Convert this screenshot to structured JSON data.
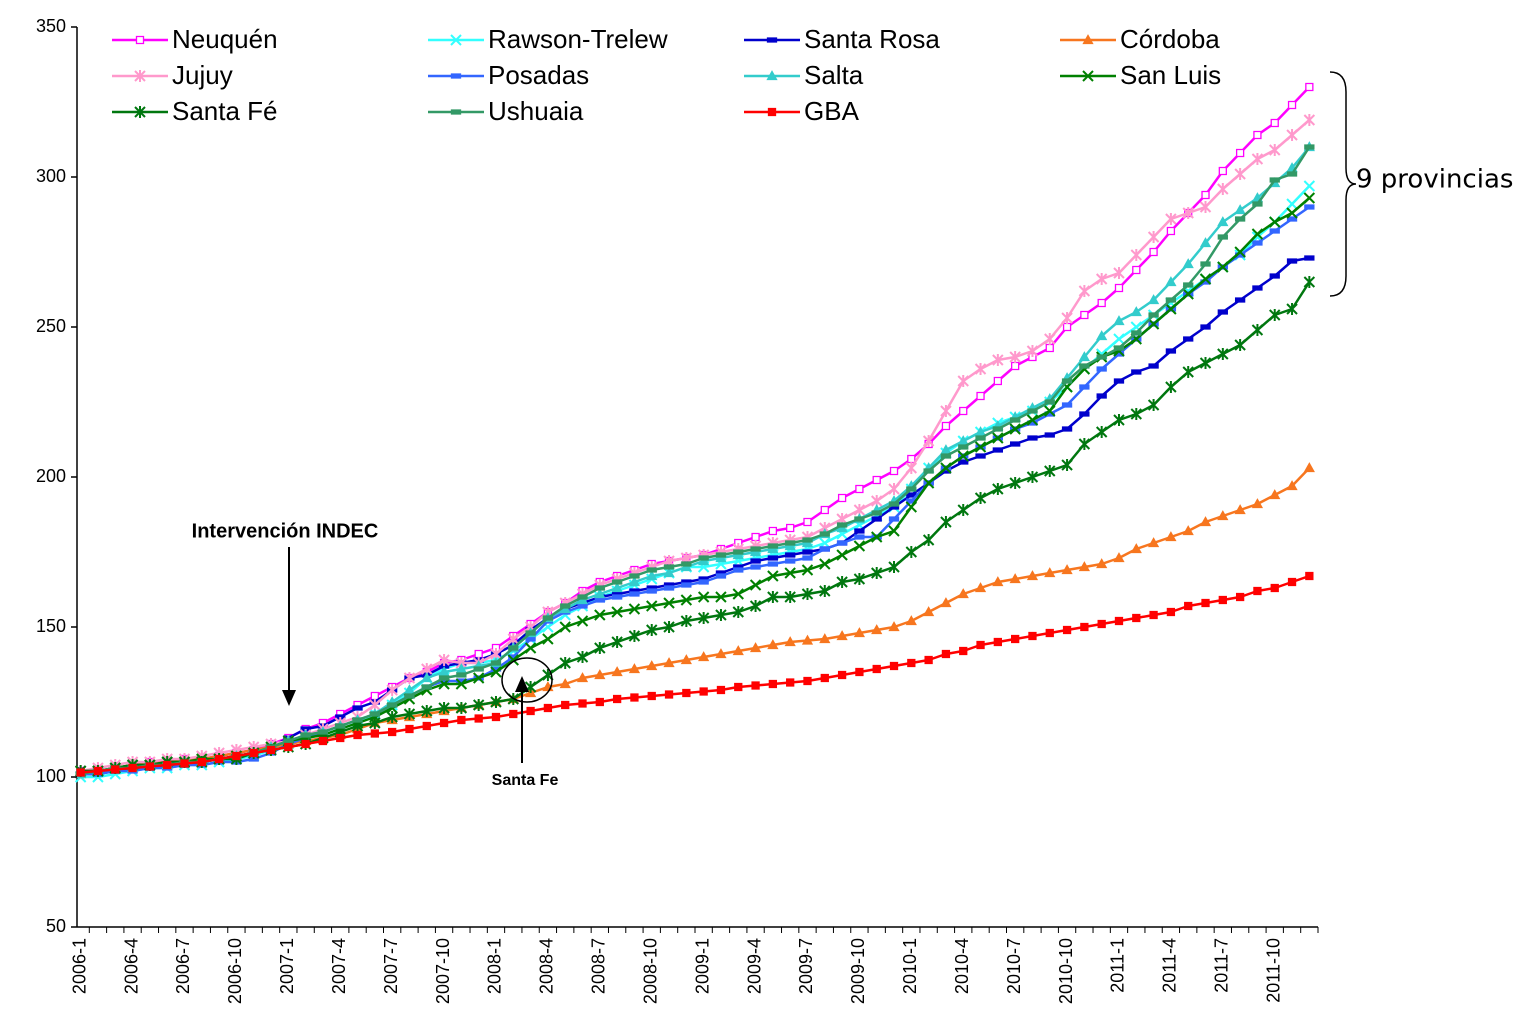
{
  "chart_data": {
    "type": "line",
    "categories": [
      "2006-1",
      null,
      null,
      "2006-4",
      null,
      null,
      "2006-7",
      null,
      null,
      "2006-10",
      null,
      null,
      "2007-1",
      null,
      null,
      "2007-4",
      null,
      null,
      "2007-7",
      null,
      null,
      "2007-10",
      null,
      null,
      "2008-1",
      null,
      null,
      "2008-4",
      null,
      null,
      "2008-7",
      null,
      null,
      "2008-10",
      null,
      null,
      "2009-1",
      null,
      null,
      "2009-4",
      null,
      null,
      "2009-7",
      null,
      null,
      "2009-10",
      null,
      null,
      "2010-1",
      null,
      null,
      "2010-4",
      null,
      null,
      "2010-7",
      null,
      null,
      "2010-10",
      null,
      null,
      "2011-1",
      null,
      null,
      "2011-4",
      null,
      null,
      "2011-7",
      null,
      null,
      "2011-10",
      null,
      null
    ],
    "ylim": [
      50,
      350
    ],
    "yticks": [
      50,
      100,
      150,
      200,
      250,
      300,
      350
    ],
    "annotations": [
      "Intervención INDEC",
      "Santa Fe",
      "9 provincias"
    ],
    "series": [
      {
        "name": "Neuquén",
        "color": "#ff00ff",
        "marker": "square-open",
        "values": [
          102,
          102,
          103,
          104,
          105,
          105,
          106,
          106,
          107,
          108,
          109,
          111,
          113,
          116,
          118,
          121,
          124,
          127,
          130,
          133,
          135,
          138,
          139,
          141,
          143,
          147,
          151,
          155,
          158,
          162,
          165,
          167,
          169,
          171,
          172,
          173,
          174,
          176,
          178,
          180,
          182,
          183,
          185,
          189,
          193,
          196,
          199,
          202,
          206,
          211,
          217,
          222,
          227,
          232,
          237,
          240,
          243,
          250,
          254,
          258,
          263,
          269,
          275,
          282,
          288,
          294,
          302,
          308,
          314,
          318,
          324,
          330
        ]
      },
      {
        "name": "Rawson-Trelew",
        "color": "#33ffff",
        "marker": "x",
        "values": [
          100,
          100,
          101,
          102,
          103,
          103,
          104,
          104,
          105,
          106,
          107,
          109,
          111,
          113,
          114,
          116,
          118,
          121,
          124,
          128,
          133,
          136,
          138,
          138,
          139,
          142,
          146,
          150,
          154,
          157,
          160,
          162,
          164,
          166,
          168,
          170,
          170,
          171,
          172,
          173,
          174,
          175,
          176,
          178,
          181,
          184,
          187,
          190,
          196,
          203,
          208,
          212,
          215,
          218,
          220,
          222,
          225,
          230,
          236,
          241,
          246,
          250,
          254,
          258,
          262,
          266,
          270,
          274,
          280,
          285,
          291,
          297
        ]
      },
      {
        "name": "Santa Rosa",
        "color": "#0000cc",
        "marker": "dash",
        "values": [
          101,
          101,
          102,
          103,
          103,
          104,
          104,
          105,
          106,
          107,
          108,
          110,
          113,
          116,
          117,
          120,
          123,
          125,
          129,
          133,
          134,
          137,
          138,
          139,
          141,
          144,
          149,
          153,
          156,
          158,
          160,
          161,
          162,
          163,
          164,
          165,
          166,
          168,
          170,
          172,
          173,
          174,
          175,
          176,
          178,
          182,
          186,
          190,
          194,
          198,
          202,
          205,
          207,
          209,
          211,
          213,
          214,
          216,
          221,
          227,
          232,
          235,
          237,
          242,
          246,
          250,
          255,
          259,
          263,
          267,
          272,
          273
        ]
      },
      {
        "name": "Córdoba",
        "color": "#f7761f",
        "marker": "triangle",
        "values": [
          101,
          102,
          103,
          104,
          104.5,
          105,
          105.5,
          106,
          107,
          108,
          109,
          110,
          111,
          112,
          113,
          114,
          116,
          118,
          119,
          120,
          121,
          122,
          123,
          124,
          125,
          126,
          128,
          130,
          131,
          133,
          134,
          135,
          136,
          137,
          138,
          139,
          140,
          141,
          142,
          143,
          144,
          145,
          145.5,
          146,
          147,
          148,
          149,
          150,
          152,
          155,
          158,
          161,
          163,
          165,
          166,
          167,
          168,
          169,
          170,
          171,
          173,
          176,
          178,
          180,
          182,
          185,
          187,
          189,
          191,
          194,
          197,
          203
        ]
      },
      {
        "name": "Jujuy",
        "color": "#ff99cc",
        "marker": "star",
        "values": [
          102,
          103,
          104,
          105,
          105,
          106,
          106,
          107,
          108,
          109,
          110,
          111,
          112,
          114,
          116,
          118,
          120,
          124,
          129,
          133,
          136,
          139,
          138,
          138,
          141,
          146,
          150,
          155,
          158,
          161,
          164,
          166,
          168,
          170,
          172,
          173,
          174,
          175,
          176,
          177,
          178,
          179,
          180,
          183,
          186,
          189,
          192,
          196,
          203,
          212,
          222,
          232,
          236,
          239,
          240,
          242,
          246,
          253,
          262,
          266,
          268,
          274,
          280,
          286,
          288,
          290,
          296,
          301,
          306,
          309,
          314,
          319
        ]
      },
      {
        "name": "Posadas",
        "color": "#3366ff",
        "marker": "dash",
        "values": [
          101,
          101,
          102,
          102,
          103,
          103,
          104,
          104,
          105,
          105,
          106,
          108,
          111,
          113,
          115,
          117,
          119,
          121,
          124,
          127,
          130,
          132,
          132,
          133,
          136,
          140,
          146,
          152,
          155,
          157,
          159,
          160,
          161,
          162,
          163,
          164,
          165,
          167,
          169,
          170,
          171,
          172,
          173,
          176,
          178,
          180,
          180,
          186,
          192,
          198,
          203,
          207,
          210,
          213,
          216,
          218,
          221,
          224,
          230,
          236,
          241,
          246,
          251,
          256,
          261,
          265,
          270,
          274,
          278,
          282,
          286,
          290
        ]
      },
      {
        "name": "Salta",
        "color": "#33cccc",
        "marker": "triangle",
        "values": [
          101,
          102,
          103,
          103,
          104,
          104,
          105,
          105,
          106,
          107,
          108,
          110,
          112,
          114,
          115,
          117,
          119,
          121,
          125,
          129,
          133,
          135,
          136,
          137,
          138,
          143,
          148,
          153,
          156,
          159,
          161,
          163,
          165,
          167,
          168,
          170,
          172,
          173,
          174,
          175,
          176,
          177,
          178,
          181,
          183,
          186,
          189,
          192,
          197,
          203,
          209,
          212,
          215,
          217,
          220,
          223,
          226,
          233,
          240,
          247,
          252,
          255,
          259,
          265,
          271,
          278,
          285,
          289,
          293,
          298,
          303,
          310
        ]
      },
      {
        "name": "San Luis",
        "color": "#008000",
        "marker": "x",
        "values": [
          102,
          102,
          103,
          104,
          104,
          105,
          105,
          106,
          106,
          107,
          108,
          110,
          112,
          113,
          114,
          116,
          118,
          120,
          123,
          126,
          129,
          131,
          131,
          133,
          135,
          139,
          143,
          146,
          150,
          152,
          154,
          155,
          156,
          157,
          158,
          159,
          160,
          160,
          161,
          164,
          167,
          168,
          169,
          171,
          174,
          177,
          180,
          182,
          190,
          198,
          203,
          207,
          210,
          213,
          216,
          219,
          222,
          230,
          236,
          240,
          242,
          246,
          251,
          256,
          261,
          266,
          270,
          275,
          281,
          285,
          288,
          293
        ]
      },
      {
        "name": "Santa Fé",
        "color": "#00770f",
        "marker": "star",
        "values": [
          102,
          102,
          103,
          104,
          104,
          105,
          105,
          105,
          106,
          106,
          108,
          109,
          110,
          111,
          113,
          115,
          117,
          118,
          120,
          121,
          122,
          123,
          123,
          124,
          125,
          126,
          130,
          134,
          138,
          140,
          143,
          145,
          147,
          149,
          150,
          152,
          153,
          154,
          155,
          157,
          160,
          160,
          161,
          162,
          165,
          166,
          168,
          170,
          175,
          179,
          185,
          189,
          193,
          196,
          198,
          200,
          202,
          204,
          211,
          215,
          219,
          221,
          224,
          230,
          235,
          238,
          241,
          244,
          249,
          254,
          256,
          265
        ]
      },
      {
        "name": "Ushuaia",
        "color": "#339966",
        "marker": "dash",
        "values": [
          101,
          102,
          103,
          103,
          104,
          104,
          105,
          105,
          106,
          107,
          108,
          110,
          112,
          114,
          115,
          117,
          119,
          121,
          124,
          127,
          130,
          133,
          134,
          136,
          138,
          143,
          148,
          153,
          157,
          160,
          163,
          165,
          167,
          169,
          170,
          171,
          173,
          174,
          175,
          176,
          177,
          178,
          179,
          181,
          184,
          186,
          188,
          191,
          196,
          202,
          207,
          210,
          213,
          216,
          219,
          222,
          225,
          232,
          237,
          240,
          243,
          248,
          254,
          259,
          264,
          271,
          280,
          286,
          291,
          299,
          301,
          310
        ]
      },
      {
        "name": "GBA",
        "color": "#ff0000",
        "marker": "square",
        "values": [
          101.5,
          102,
          102.5,
          103,
          103.5,
          104,
          104.5,
          105,
          106,
          107,
          108,
          109,
          110,
          111,
          112,
          113,
          114,
          114.5,
          115,
          116,
          117,
          118,
          119,
          119.5,
          120,
          121,
          122,
          123,
          124,
          124.5,
          125,
          126,
          126.5,
          127,
          127.5,
          128,
          128.5,
          129,
          130,
          130.5,
          131,
          131.5,
          132,
          133,
          134,
          135,
          136,
          137,
          138,
          139,
          141,
          142,
          144,
          145,
          146,
          147,
          148,
          149,
          150,
          151,
          152,
          153,
          154,
          155,
          157,
          158,
          159,
          160,
          162,
          163,
          165,
          167
        ]
      }
    ]
  }
}
